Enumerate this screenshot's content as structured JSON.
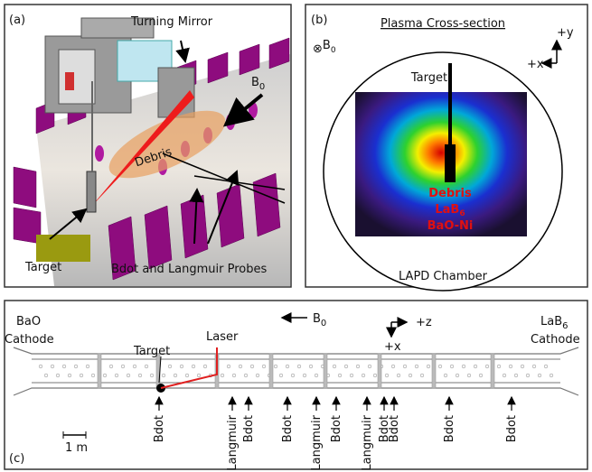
{
  "panel_a": {
    "label": "(a)",
    "turning_mirror": "Turning Mirror",
    "b_field": {
      "main": "B",
      "sub": "0"
    },
    "debris": "Debris",
    "target": "Target",
    "probes": "Bdot and Langmuir Probes"
  },
  "panel_b": {
    "label": "(b)",
    "title": "Plasma Cross-section",
    "b_field": {
      "symbol": "⊗",
      "main": "B",
      "sub": "0"
    },
    "plus_y": "+y",
    "plus_x": "+x",
    "target": "Target",
    "debris": "Debris",
    "lab6": {
      "main": "LaB",
      "sub": "6"
    },
    "bao": "BaO-Ni",
    "chamber": "LAPD Chamber"
  },
  "panel_c": {
    "label": "(c)",
    "bao_cathode": [
      "BaO",
      "Cathode"
    ],
    "lab6_cathode": {
      "main": "LaB",
      "sub": "6",
      "line2": "Cathode"
    },
    "target": "Target",
    "laser": "Laser",
    "b_field": {
      "main": "B",
      "sub": "0"
    },
    "plus_z": "+z",
    "plus_x": "+x",
    "scale": "1 m",
    "probes": [
      "Bdot",
      "Langmuir",
      "Bdot",
      "Bdot",
      "Langmuir",
      "Bdot",
      "Langmuir",
      "Bdot",
      "Bdot",
      "Bdot",
      "Bdot"
    ]
  }
}
